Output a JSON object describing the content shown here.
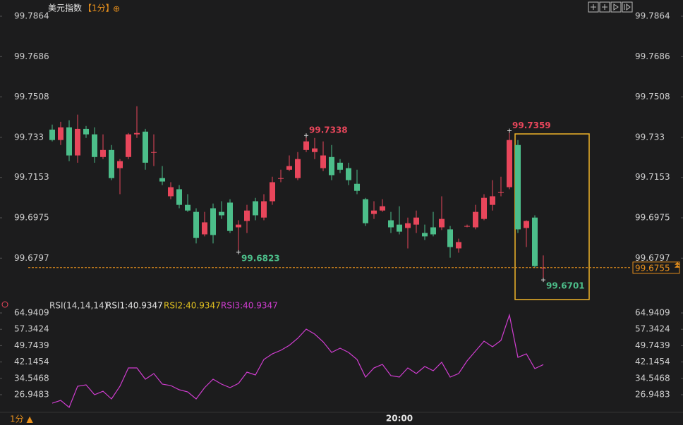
{
  "header": {
    "title": "美元指数",
    "period": "【1分】",
    "icon": "⊕"
  },
  "footer": {
    "period": "1分 ▲"
  },
  "chart_data": [
    {
      "type": "candlestick",
      "up_color": "#e8465b",
      "down_color": "#4cbe8a",
      "ylim": [
        99.663,
        99.792
      ],
      "yticks": [
        99.7864,
        99.7686,
        99.7508,
        99.733,
        99.7153,
        99.6975,
        99.6797
      ],
      "categories": [
        null,
        null,
        null,
        null,
        null,
        null,
        null,
        null,
        null,
        null,
        null,
        null,
        null,
        null,
        null,
        null,
        null,
        null,
        null,
        null,
        null,
        null,
        null,
        null,
        null,
        null,
        null,
        null,
        null,
        null,
        null,
        null,
        null,
        null,
        null,
        null,
        null,
        null,
        null,
        null,
        null,
        "20:00",
        null,
        null,
        null,
        null,
        null,
        null,
        null,
        null,
        null,
        null,
        null,
        null,
        null,
        null,
        null,
        null,
        null
      ],
      "open": [
        99.7364,
        99.7318,
        99.7374,
        99.725,
        99.7367,
        99.7343,
        99.7243,
        99.7274,
        99.7194,
        99.7243,
        99.7343,
        99.7355,
        99.7265,
        99.715,
        99.707,
        99.7101,
        99.7032,
        99.7001,
        99.6902,
        99.7017,
        99.7001,
        99.7042,
        99.6933,
        99.6961,
        99.7048,
        99.6976,
        99.7048,
        99.7147,
        99.7187,
        99.715,
        99.7274,
        99.7265,
        99.7194,
        99.7243,
        99.7218,
        99.7194,
        99.7125,
        99.7057,
        99.6992,
        99.7007,
        99.6964,
        99.6945,
        99.693,
        99.6945,
        99.6908,
        99.6933,
        99.6933,
        99.6924,
        99.684,
        99.6939,
        99.6933,
        99.697,
        99.7032,
        99.7088,
        99.711,
        99.7296,
        99.693,
        99.6976,
        99.6755
      ],
      "high": [
        99.7386,
        99.7398,
        99.7405,
        99.743,
        99.738,
        99.7374,
        99.7343,
        99.7296,
        99.7234,
        99.7349,
        99.7467,
        99.7367,
        99.7343,
        99.7203,
        99.7132,
        99.7119,
        99.7079,
        99.7017,
        99.7001,
        99.7038,
        99.7048,
        99.7057,
        99.6964,
        99.7032,
        99.7063,
        99.7079,
        99.7156,
        99.7187,
        99.725,
        99.7265,
        99.7338,
        99.7327,
        99.7312,
        99.7296,
        99.7234,
        99.7218,
        99.7187,
        99.7063,
        99.7048,
        99.7057,
        99.7001,
        99.7026,
        99.6976,
        99.7007,
        99.6945,
        99.7001,
        99.707,
        99.6939,
        99.6883,
        99.6945,
        99.7032,
        99.7079,
        99.7141,
        99.7156,
        99.7359,
        99.7318,
        99.6964,
        99.6986,
        99.6809
      ],
      "low": [
        99.7312,
        99.7296,
        99.7225,
        99.7218,
        99.7327,
        99.7218,
        99.7234,
        99.7141,
        99.7079,
        99.7234,
        99.7327,
        99.7187,
        99.7203,
        99.7119,
        99.7057,
        99.7017,
        99.7001,
        99.6862,
        99.6893,
        99.6862,
        99.697,
        99.6908,
        99.6823,
        99.6908,
        99.6964,
        99.6964,
        99.7032,
        99.7132,
        99.7181,
        99.7141,
        99.7265,
        99.7234,
        99.7181,
        99.7141,
        99.7172,
        99.7119,
        99.7079,
        99.6939,
        99.697,
        99.7001,
        99.6908,
        99.6902,
        99.684,
        99.6908,
        99.6877,
        99.6893,
        99.6921,
        99.6799,
        99.6821,
        99.6933,
        99.6924,
        99.6964,
        99.7007,
        99.707,
        99.7101,
        99.6908,
        99.6846,
        99.6753,
        99.6701
      ],
      "close": [
        99.7318,
        99.7374,
        99.725,
        99.7367,
        99.7343,
        99.7243,
        99.7274,
        99.715,
        99.7225,
        99.7343,
        99.7349,
        99.7218,
        99.7265,
        99.7135,
        99.711,
        99.7032,
        99.7007,
        99.6886,
        99.6955,
        99.6899,
        99.6986,
        99.6917,
        99.6945,
        99.7007,
        99.6986,
        99.7048,
        99.7132,
        99.715,
        99.7203,
        99.7234,
        99.7312,
        99.7281,
        99.725,
        99.7163,
        99.7187,
        99.7141,
        99.7094,
        99.6951,
        99.7007,
        99.7026,
        99.6933,
        99.6914,
        99.6951,
        99.6976,
        99.6893,
        99.6902,
        99.697,
        99.6846,
        99.6868,
        99.6939,
        99.7001,
        99.7063,
        99.707,
        99.7088,
        99.7318,
        99.6924,
        99.6961,
        99.6762,
        99.6755
      ],
      "high_labels": [
        99.7338,
        99.7359
      ],
      "high_label_color": "#e8465b",
      "low_labels": [
        99.6823,
        99.6701
      ],
      "low_label_color": "#4cbe8a",
      "last_price": 99.6755,
      "last_price_color": "#e8901c"
    },
    {
      "type": "line",
      "title": "RSI(14,14,14)",
      "legend": [
        {
          "name": "RSI1:40.9347",
          "color": "#e6e6e6"
        },
        {
          "name": "RSI2:40.9347",
          "color": "#e0c020"
        },
        {
          "name": "RSI3:40.9347",
          "color": "#d03dd0"
        }
      ],
      "color": "#d03dd0",
      "ylim": [
        18.76,
        68.87
      ],
      "yticks": [
        64.9409,
        57.3424,
        49.7439,
        42.1454,
        34.5468,
        26.9483
      ],
      "values": [
        23.01,
        24.32,
        21.05,
        30.88,
        31.53,
        26.95,
        28.58,
        24.98,
        30.88,
        39.39,
        39.39,
        34.15,
        36.77,
        31.86,
        31.2,
        29.24,
        28.25,
        24.98,
        30.22,
        34.15,
        31.86,
        30.22,
        32.19,
        37.43,
        36.12,
        43.32,
        45.94,
        47.58,
        49.87,
        53.15,
        57.41,
        55.11,
        51.51,
        46.6,
        48.56,
        46.6,
        43.32,
        35.13,
        39.39,
        41.03,
        35.79,
        35.13,
        39.39,
        36.77,
        40.05,
        38.08,
        42.01,
        35.13,
        36.77,
        42.67,
        47.25,
        51.84,
        49.22,
        52.17,
        63.96,
        44.3,
        45.94,
        39.06,
        40.9347
      ]
    }
  ]
}
